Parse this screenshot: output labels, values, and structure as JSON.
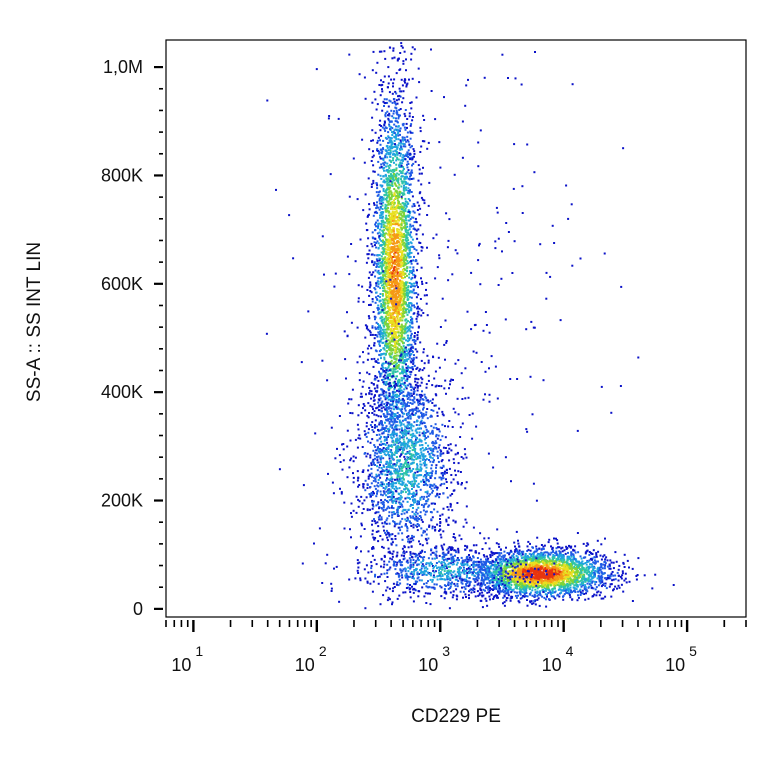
{
  "chart_data": {
    "type": "scatter",
    "subtype": "flow-cytometry-density-dot-plot",
    "xlabel": "CD229 PE",
    "ylabel": "SS-A :: SS INT LIN",
    "x_scale": "log",
    "xlim": [
      6,
      300000
    ],
    "ylim": [
      -15000,
      1050000
    ],
    "x_ticks": [
      {
        "base": "10",
        "exp": "1",
        "value": 10
      },
      {
        "base": "10",
        "exp": "2",
        "value": 100
      },
      {
        "base": "10",
        "exp": "3",
        "value": 1000
      },
      {
        "base": "10",
        "exp": "4",
        "value": 10000
      },
      {
        "base": "10",
        "exp": "5",
        "value": 100000
      }
    ],
    "y_ticks": [
      {
        "label": "0",
        "value": 0
      },
      {
        "label": "200K",
        "value": 200000
      },
      {
        "label": "400K",
        "value": 400000
      },
      {
        "label": "600K",
        "value": 600000
      },
      {
        "label": "800K",
        "value": 800000
      },
      {
        "label": "1,0M",
        "value": 1000000
      }
    ],
    "density_colors": [
      "#0b12c8",
      "#1e5ae6",
      "#1fa3e0",
      "#2ec4a6",
      "#7fd43a",
      "#e8e021",
      "#f59a16",
      "#e8350e"
    ],
    "populations": [
      {
        "name_hidden": true,
        "x_center": 430,
        "y_center": 620000,
        "x_sd_log10": 0.09,
        "y_sd": 170000,
        "count": 3400,
        "peak_density": 0.85
      },
      {
        "name_hidden": true,
        "x_center": 520,
        "y_center": 270000,
        "x_sd_log10": 0.2,
        "y_sd": 90000,
        "count": 1700,
        "peak_density": 0.4
      },
      {
        "name_hidden": true,
        "x_center": 6500,
        "y_center": 65000,
        "x_sd_log10": 0.28,
        "y_sd": 22000,
        "count": 2600,
        "peak_density": 1.0
      },
      {
        "name_hidden": true,
        "x_center": 1100,
        "y_center": 70000,
        "x_sd_log10": 0.35,
        "y_sd": 25000,
        "count": 700,
        "peak_density": 0.35
      },
      {
        "name_hidden": true,
        "x_center": 900,
        "y_center": 600000,
        "x_sd_log10": 0.6,
        "y_sd": 260000,
        "count": 300,
        "peak_density": 0.05
      }
    ]
  }
}
